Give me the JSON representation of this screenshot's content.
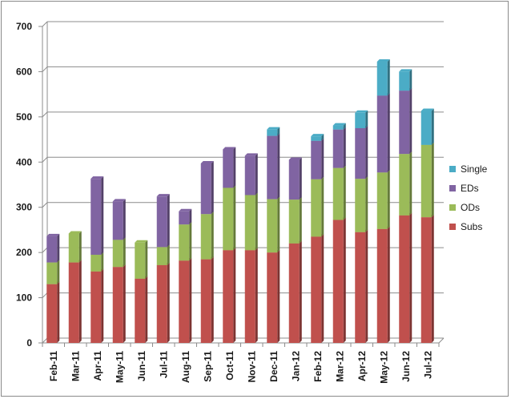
{
  "chart_data": {
    "type": "bar",
    "stacked": true,
    "categories": [
      "Feb-11",
      "Mar-11",
      "Apr-11",
      "May-11",
      "Jun-11",
      "Jul-11",
      "Aug-11",
      "Sep-11",
      "Oct-11",
      "Nov-11",
      "Dec-11",
      "Jan-12",
      "Feb-12",
      "Mar-12",
      "Apr-12",
      "May-12",
      "Jun-12",
      "Jul-12"
    ],
    "series": [
      {
        "name": "Subs",
        "color": "#c0504d",
        "values": [
          130,
          178,
          158,
          168,
          142,
          172,
          182,
          185,
          205,
          205,
          200,
          220,
          235,
          272,
          245,
          252,
          282,
          278
        ]
      },
      {
        "name": "ODs",
        "color": "#9bbb59",
        "values": [
          48,
          64,
          37,
          60,
          80,
          40,
          80,
          100,
          138,
          122,
          118,
          97,
          127,
          115,
          118,
          125,
          136,
          160
        ]
      },
      {
        "name": "EDs",
        "color": "#8064a2",
        "values": [
          58,
          0,
          168,
          85,
          0,
          112,
          29,
          112,
          85,
          87,
          140,
          88,
          85,
          85,
          112,
          170,
          140,
          0
        ]
      },
      {
        "name": "Single",
        "color": "#4bacc6",
        "values": [
          0,
          0,
          0,
          0,
          0,
          0,
          0,
          0,
          0,
          0,
          14,
          0,
          10,
          9,
          34,
          75,
          42,
          75
        ]
      }
    ],
    "ylim": [
      0,
      700
    ],
    "yticks": [
      0,
      100,
      200,
      300,
      400,
      500,
      600,
      700
    ],
    "grid": true,
    "legend": "right",
    "legend_order": [
      "Single",
      "EDs",
      "ODs",
      "Subs"
    ]
  }
}
